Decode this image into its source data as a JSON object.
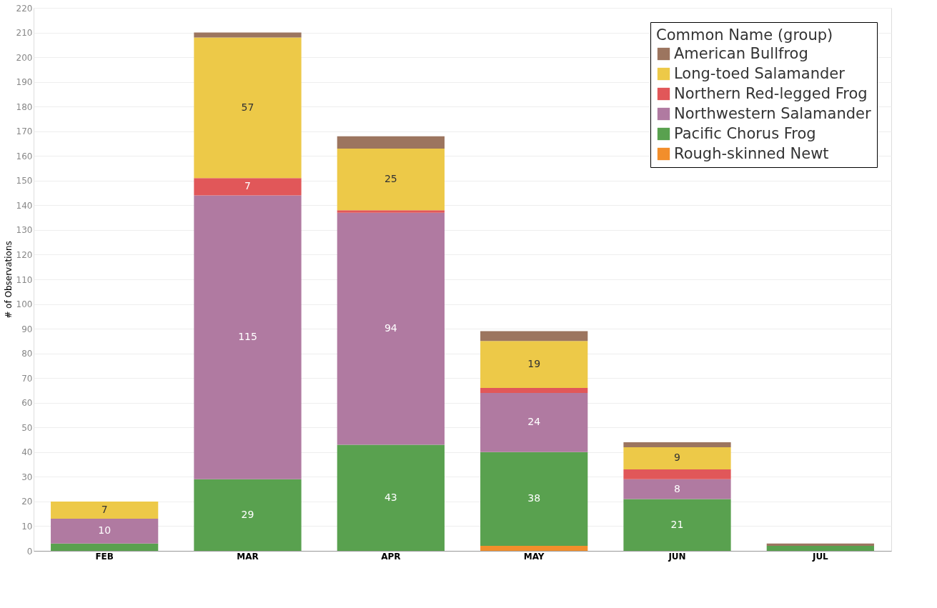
{
  "chart_data": {
    "type": "bar",
    "stacked": true,
    "ylabel": "# of Observations",
    "legend_title": "Common Name (group)",
    "legend": "top right",
    "grid": "y",
    "categories": [
      "FEB",
      "MAR",
      "APR",
      "MAY",
      "JUN",
      "JUL"
    ],
    "ylim": [
      0,
      220
    ],
    "yticks": [
      0,
      10,
      20,
      30,
      40,
      50,
      60,
      70,
      80,
      90,
      100,
      110,
      120,
      130,
      140,
      150,
      160,
      170,
      180,
      190,
      200,
      210,
      220
    ],
    "series": [
      {
        "name": "Rough-skinned Newt",
        "color": "#f28e2b",
        "values": [
          null,
          null,
          null,
          2,
          null,
          null
        ],
        "value_labels": [
          null,
          null,
          null,
          null,
          null,
          null
        ]
      },
      {
        "name": "Pacific Chorus Frog",
        "color": "#59a14f",
        "values": [
          3,
          29,
          43,
          38,
          21,
          2
        ],
        "value_labels": [
          null,
          "29",
          "43",
          "38",
          "21",
          null
        ]
      },
      {
        "name": "Northwestern Salamander",
        "color": "#b07aa1",
        "values": [
          10,
          115,
          94,
          24,
          8,
          null
        ],
        "value_labels": [
          "10",
          "115",
          "94",
          "24",
          "8",
          null
        ]
      },
      {
        "name": "Northern Red-legged Frog",
        "color": "#e15759",
        "values": [
          null,
          7,
          1,
          2,
          4,
          null
        ],
        "value_labels": [
          null,
          "7",
          null,
          null,
          null,
          null
        ]
      },
      {
        "name": "Long-toed Salamander",
        "color": "#edc948",
        "values": [
          7,
          57,
          25,
          19,
          9,
          null
        ],
        "value_labels": [
          "7",
          "57",
          "25",
          "19",
          "9",
          null
        ]
      },
      {
        "name": "American Bullfrog",
        "color": "#9c755f",
        "values": [
          null,
          2,
          5,
          4,
          2,
          1
        ],
        "value_labels": [
          null,
          null,
          null,
          null,
          null,
          null
        ]
      }
    ]
  }
}
